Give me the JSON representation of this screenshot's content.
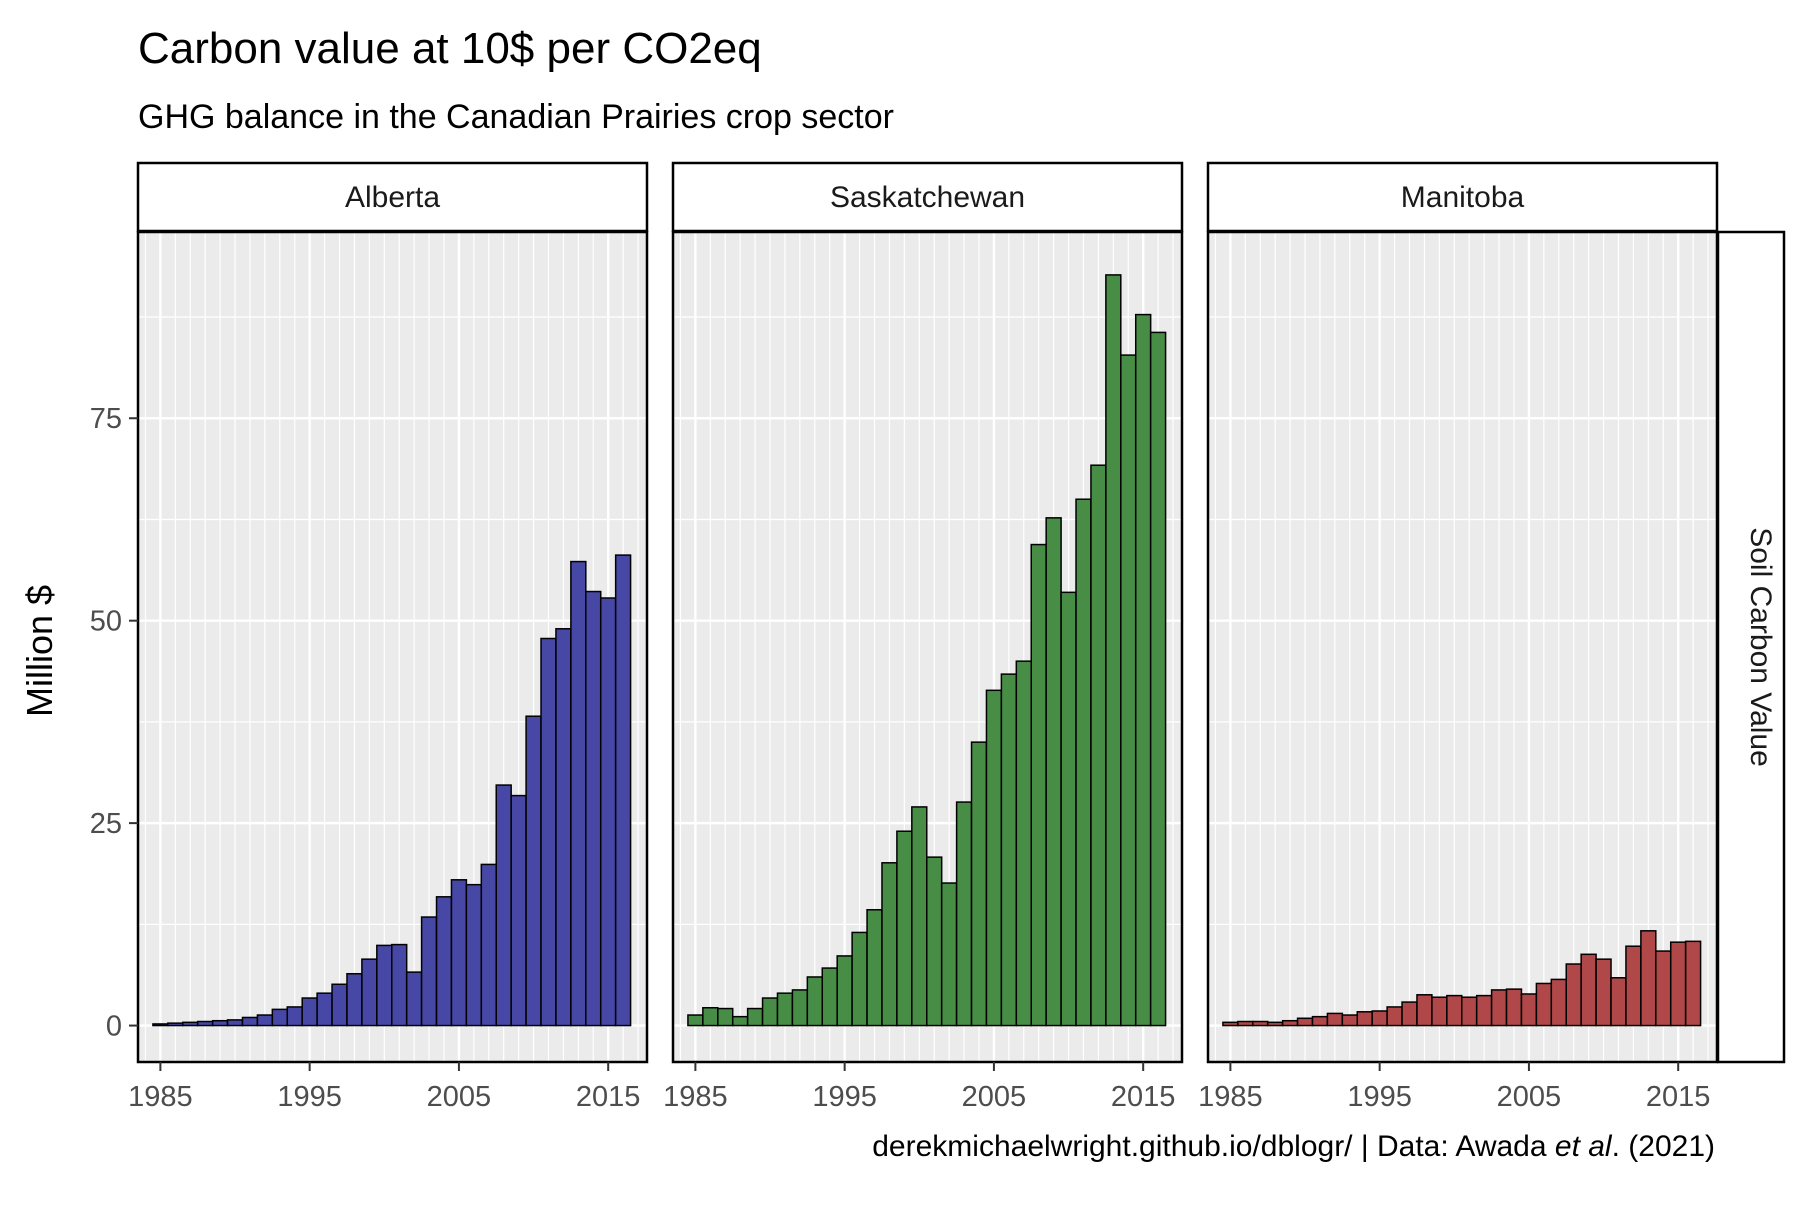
{
  "chart_data": {
    "type": "bar",
    "title": "Carbon value at 10$ per CO2eq",
    "subtitle": "GHG balance in the Canadian Prairies crop sector",
    "ylabel": "Million $",
    "xlabel": "",
    "facet_row_label": "Soil Carbon Value",
    "caption_prefix": "derekmichaelwright.github.io/dblogr/ | Data: Awada ",
    "caption_italic": "et al",
    "caption_suffix": ". (2021)",
    "ylim": [
      -4.5,
      98
    ],
    "xlim": [
      1983.5,
      2017.6
    ],
    "y_ticks": [
      0,
      25,
      50,
      75
    ],
    "x_ticks": [
      1985,
      1995,
      2005,
      2015
    ],
    "years": [
      1985,
      1986,
      1987,
      1988,
      1989,
      1990,
      1991,
      1992,
      1993,
      1994,
      1995,
      1996,
      1997,
      1998,
      1999,
      2000,
      2001,
      2002,
      2003,
      2004,
      2005,
      2006,
      2007,
      2008,
      2009,
      2010,
      2011,
      2012,
      2013,
      2014,
      2015,
      2016
    ],
    "grid": true,
    "series": [
      {
        "name": "Alberta",
        "color": "#4747A5",
        "values": [
          0.2,
          0.3,
          0.4,
          0.5,
          0.6,
          0.7,
          1.0,
          1.3,
          2.0,
          2.3,
          3.4,
          4.0,
          5.1,
          6.4,
          8.2,
          9.9,
          10.0,
          6.6,
          13.4,
          15.9,
          18.0,
          17.4,
          19.9,
          29.7,
          28.4,
          38.2,
          47.8,
          49.0,
          57.3,
          53.6,
          52.8,
          58.1
        ]
      },
      {
        "name": "Saskatchewan",
        "color": "#478D46",
        "values": [
          1.3,
          2.2,
          2.1,
          1.1,
          2.1,
          3.4,
          4.0,
          4.4,
          6.0,
          7.1,
          8.6,
          11.5,
          14.3,
          20.1,
          24.0,
          27.0,
          20.8,
          17.6,
          27.6,
          35.0,
          41.4,
          43.4,
          45.0,
          59.4,
          62.7,
          53.5,
          65.0,
          69.2,
          92.7,
          82.8,
          87.8,
          85.6
        ]
      },
      {
        "name": "Manitoba",
        "color": "#B04748",
        "values": [
          0.4,
          0.5,
          0.5,
          0.4,
          0.6,
          0.9,
          1.1,
          1.5,
          1.3,
          1.7,
          1.8,
          2.3,
          2.9,
          3.8,
          3.5,
          3.7,
          3.5,
          3.7,
          4.4,
          4.5,
          3.9,
          5.2,
          5.7,
          7.6,
          8.8,
          8.2,
          5.9,
          9.8,
          11.7,
          9.2,
          10.3,
          10.4
        ]
      }
    ]
  }
}
